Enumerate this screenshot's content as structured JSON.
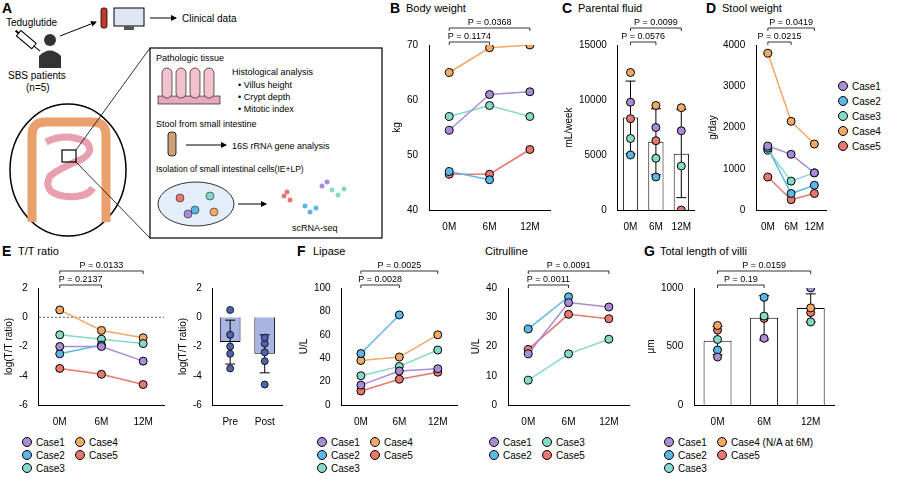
{
  "diagram": {
    "panel": "A",
    "drug": "Teduglutide",
    "patients": "SBS patients",
    "n": "(n=5)",
    "clinical": "Clinical data",
    "box": [
      {
        "title": "Pathologic tissue",
        "analysis": "Histological analysis",
        "items": [
          "• Villus height",
          "• Crypt depth",
          "• Mitotic index"
        ]
      },
      {
        "title": "Stool from small intestine",
        "analysis": "16S rRNA gene analysis"
      },
      {
        "title": "Isolation of small intestinal cells(IE+LP)",
        "analysis": "scRNA-seq"
      }
    ]
  },
  "chart_data": [
    {
      "panel": "B",
      "type": "line",
      "title": "Body weight",
      "ylabel": "kg",
      "categories": [
        "0M",
        "6M",
        "12M"
      ],
      "ylim": [
        40,
        70
      ],
      "yticks": [
        40,
        50,
        60,
        70
      ],
      "grid": false,
      "series": [
        {
          "color": "#a98bd6",
          "values": [
            54.5,
            61,
            61.5
          ]
        },
        {
          "color": "#5bb8e6",
          "values": [
            47,
            45.5,
            null
          ]
        },
        {
          "color": "#86d9c9",
          "values": [
            57,
            59,
            57
          ]
        },
        {
          "color": "#f2a965",
          "values": [
            65,
            69.5,
            70
          ]
        },
        {
          "color": "#e8776e",
          "values": [
            46.5,
            46.5,
            51
          ]
        }
      ],
      "annotations": [
        {
          "text": "P = 0.0368",
          "from": "0M",
          "to": "12M"
        },
        {
          "text": "P = 0.1174",
          "from": "0M",
          "to": "6M"
        }
      ]
    },
    {
      "panel": "C",
      "type": "bar",
      "title": "Parental fluid",
      "ylabel": "mL/week",
      "categories": [
        "0M",
        "6M",
        "12M"
      ],
      "values": [
        8420,
        6200,
        5125
      ],
      "errors": [
        3300,
        3000,
        4000
      ],
      "color": "#ffffff",
      "ylim": [
        0,
        15000
      ],
      "yticks": [
        0,
        5000,
        10000,
        15000
      ],
      "grid": false,
      "series": [
        {
          "color": "#a98bd6",
          "values": [
            9800,
            7500,
            7200
          ]
        },
        {
          "color": "#5bb8e6",
          "values": [
            5000,
            3000,
            null
          ]
        },
        {
          "color": "#86d9c9",
          "values": [
            6500,
            4700,
            4000
          ]
        },
        {
          "color": "#f2a965",
          "values": [
            12500,
            9500,
            9300
          ]
        },
        {
          "color": "#e8776e",
          "values": [
            8300,
            6300,
            0
          ]
        }
      ],
      "annotations": [
        {
          "text": "P = 0.0099",
          "from": "0M",
          "to": "12M"
        },
        {
          "text": "P = 0.0576",
          "from": "0M",
          "to": "6M"
        }
      ]
    },
    {
      "panel": "D",
      "type": "line",
      "title": "Stool weight",
      "ylabel": "g/day",
      "categories": [
        "0M",
        "6M",
        "12M"
      ],
      "ylim": [
        0,
        4000
      ],
      "yticks": [
        0,
        1000,
        2000,
        3000,
        4000
      ],
      "grid": false,
      "legend": "right",
      "series": [
        {
          "name": "Case1",
          "color": "#a98bd6",
          "values": [
            1550,
            1350,
            900
          ]
        },
        {
          "name": "Case2",
          "color": "#5bb8e6",
          "values": [
            1500,
            400,
            600
          ]
        },
        {
          "name": "Case3",
          "color": "#86d9c9",
          "values": [
            1450,
            700,
            900
          ]
        },
        {
          "name": "Case4",
          "color": "#f2a965",
          "values": [
            3800,
            2150,
            1600
          ]
        },
        {
          "name": "Case5",
          "color": "#e8776e",
          "values": [
            800,
            250,
            400
          ]
        }
      ],
      "annotations": [
        {
          "text": "P = 0.0419",
          "from": "0M",
          "to": "12M"
        },
        {
          "text": "P = 0.0215",
          "from": "0M",
          "to": "6M"
        }
      ]
    },
    {
      "panel": "E",
      "type": "line",
      "title": "T/T ratio",
      "ylabel": "log(T/T ratio)",
      "categories": [
        "0M",
        "6M",
        "12M"
      ],
      "ylim": [
        -6,
        2
      ],
      "yticks": [
        -6,
        -4,
        -2,
        0,
        2
      ],
      "grid": false,
      "legend": "bottom",
      "reference_lines": [
        0
      ],
      "series": [
        {
          "name": "Case1",
          "color": "#a98bd6",
          "values": [
            -2.0,
            -2.0,
            -3.0
          ]
        },
        {
          "name": "Case2",
          "color": "#5bb8e6",
          "values": [
            -2.5,
            -1.9,
            null
          ]
        },
        {
          "name": "Case3",
          "color": "#86d9c9",
          "values": [
            -1.2,
            -1.5,
            -1.8
          ]
        },
        {
          "name": "Case4",
          "color": "#f2a965",
          "values": [
            0.5,
            -0.9,
            -1.4
          ]
        },
        {
          "name": "Case5",
          "color": "#e8776e",
          "values": [
            -3.5,
            -3.9,
            -4.6
          ]
        }
      ],
      "annotations": [
        {
          "text": "P = 0.0133",
          "from": "0M",
          "to": "12M"
        },
        {
          "text": "P = 0.2137",
          "from": "0M",
          "to": "6M"
        }
      ]
    },
    {
      "type": "bar",
      "ylabel": "log(T/T ratio)",
      "categories": [
        "Pre",
        "Post"
      ],
      "values": [
        -1.7,
        -2.5
      ],
      "errors": [
        1.5,
        1.3
      ],
      "color": "#aab4e3",
      "ylim": [
        -6,
        2
      ],
      "yticks": [
        -6,
        -4,
        -2,
        0,
        2
      ],
      "grid": false,
      "points": {
        "color": "#4f63b0",
        "values": [
          [
            0.5,
            -1.2,
            -2.0,
            -2.5,
            -3.5
          ],
          [
            -1.4,
            -1.8,
            -3.0,
            -4.6,
            -2.4
          ]
        ]
      }
    },
    {
      "panel": "F",
      "type": "line",
      "title": "Lipase",
      "ylabel": "U/L",
      "categories": [
        "0M",
        "6M",
        "12M"
      ],
      "ylim": [
        0,
        100
      ],
      "yticks": [
        0,
        20,
        40,
        60,
        80,
        100
      ],
      "grid": false,
      "legend": "bottom",
      "series": [
        {
          "name": "Case1",
          "color": "#a98bd6",
          "values": [
            17,
            29,
            31
          ]
        },
        {
          "name": "Case2",
          "color": "#5bb8e6",
          "values": [
            44,
            77,
            null
          ]
        },
        {
          "name": "Case3",
          "color": "#86d9c9",
          "values": [
            25,
            33,
            47
          ]
        },
        {
          "name": "Case4",
          "color": "#f2a965",
          "values": [
            38,
            41,
            60
          ]
        },
        {
          "name": "Case5",
          "color": "#e8776e",
          "values": [
            12,
            22,
            28
          ]
        }
      ],
      "annotations": [
        {
          "text": "P = 0.0025",
          "from": "0M",
          "to": "12M"
        },
        {
          "text": "P = 0.0028",
          "from": "0M",
          "to": "6M"
        }
      ]
    },
    {
      "type": "line",
      "title": "Citrulline",
      "ylabel": "U/L",
      "categories": [
        "0M",
        "6M",
        "12M"
      ],
      "ylim": [
        0,
        40
      ],
      "yticks": [
        0,
        10,
        20,
        30,
        40
      ],
      "grid": false,
      "legend": "bottom",
      "series": [
        {
          "name": "Case1",
          "color": "#a98bd6",
          "values": [
            17.5,
            35,
            33.5
          ]
        },
        {
          "name": "Case2",
          "color": "#5bb8e6",
          "values": [
            26,
            37,
            null
          ]
        },
        {
          "name": "Case3",
          "color": "#86d9c9",
          "values": [
            8.5,
            17.5,
            22.5
          ]
        },
        {
          "name": "Case5",
          "color": "#e8776e",
          "values": [
            19,
            31,
            29.5
          ]
        }
      ],
      "annotations": [
        {
          "text": "P = 0.0091",
          "from": "0M",
          "to": "12M"
        },
        {
          "text": "P = 0.0011",
          "from": "0M",
          "to": "6M"
        }
      ]
    },
    {
      "panel": "G",
      "type": "bar",
      "title": "Total length of villi",
      "ylabel": "μm",
      "categories": [
        "0M",
        "6M",
        "12M"
      ],
      "values": [
        550,
        745,
        830
      ],
      "errors": [
        120,
        190,
        120
      ],
      "color": "#ffffff",
      "ylim": [
        0,
        1000
      ],
      "yticks": [
        0,
        500,
        1000
      ],
      "grid": false,
      "legend": "bottom",
      "series": [
        {
          "name": "Case1",
          "color": "#a98bd6",
          "values": [
            410,
            570,
            1000
          ]
        },
        {
          "name": "Case2",
          "color": "#5bb8e6",
          "values": [
            470,
            920,
            null
          ]
        },
        {
          "name": "Case3",
          "color": "#86d9c9",
          "values": [
            560,
            760,
            710
          ]
        },
        {
          "name": "Case4 (N/A at 6M)",
          "color": "#f2a965",
          "values": [
            680,
            null,
            830
          ]
        },
        {
          "name": "Case5",
          "color": "#e8776e",
          "values": [
            640,
            740,
            790
          ]
        }
      ],
      "annotations": [
        {
          "text": "P = 0.0159",
          "from": "0M",
          "to": "12M"
        },
        {
          "text": "P = 0.19",
          "from": "0M",
          "to": "6M"
        }
      ]
    }
  ]
}
